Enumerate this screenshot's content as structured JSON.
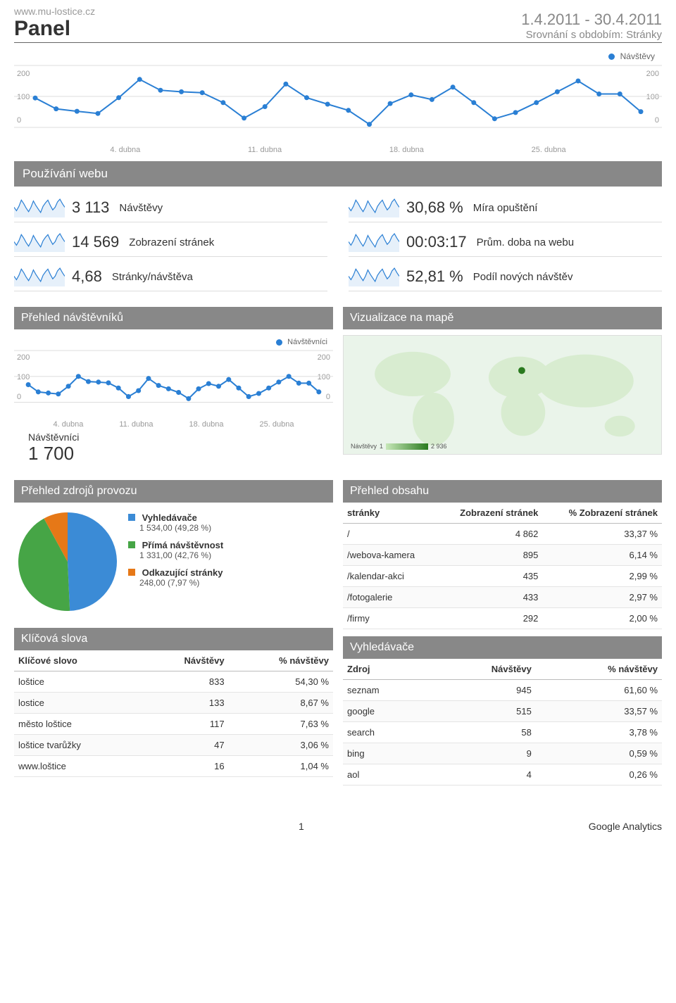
{
  "header": {
    "site": "www.mu-lostice.cz",
    "title": "Panel",
    "date_range": "1.4.2011 - 30.4.2011",
    "subtitle": "Srovnání s obdobím: Stránky"
  },
  "colors": {
    "primary": "#2a7fd4",
    "primary_fill": "#e6f0fa",
    "grid": "#dddddd",
    "axis_text": "#999999",
    "pie_blue": "#3b8bd6",
    "pie_green": "#46a546",
    "pie_orange": "#e67817",
    "bar_bg": "#888888",
    "map_bg": "#eaf4ea"
  },
  "main_chart": {
    "legend": "Návštěvy",
    "y_ticks": [
      "200",
      "100",
      "0"
    ],
    "x_ticks": [
      "4. dubna",
      "11. dubna",
      "18. dubna",
      "25. dubna"
    ],
    "ymax": 200,
    "values": [
      95,
      60,
      52,
      45,
      96,
      155,
      120,
      115,
      112,
      80,
      30,
      67,
      140,
      96,
      75,
      55,
      10,
      77,
      105,
      90,
      130,
      80,
      28,
      48,
      80,
      115,
      150,
      108,
      108,
      51
    ]
  },
  "usage": {
    "title": "Používání webu",
    "sparkline": [
      50,
      30,
      55,
      90,
      70,
      45,
      25,
      50,
      85,
      60,
      40,
      20,
      55,
      75,
      90,
      60,
      35,
      50,
      80,
      95,
      70,
      50
    ],
    "items": [
      {
        "value": "3 113",
        "label": "Návštěvy"
      },
      {
        "value": "30,68 %",
        "label": "Míra opuštění"
      },
      {
        "value": "14 569",
        "label": "Zobrazení stránek"
      },
      {
        "value": "00:03:17",
        "label": "Prům. doba na webu"
      },
      {
        "value": "4,68",
        "label": "Stránky/návštěva"
      },
      {
        "value": "52,81 %",
        "label": "Podíl nových návštěv"
      }
    ]
  },
  "visitors_panel": {
    "title": "Přehled návštěvníků",
    "legend": "Návštěvníci",
    "y_ticks": [
      "200",
      "100",
      "0"
    ],
    "x_ticks": [
      "4. dubna",
      "11. dubna",
      "18. dubna",
      "25. dubna"
    ],
    "ymax": 200,
    "values": [
      68,
      40,
      36,
      32,
      62,
      100,
      80,
      78,
      75,
      55,
      22,
      45,
      92,
      65,
      52,
      38,
      14,
      52,
      72,
      62,
      88,
      55,
      22,
      34,
      55,
      78,
      100,
      74,
      74,
      40
    ],
    "summary_label": "Návštěvníci",
    "summary_value": "1 700"
  },
  "map_panel": {
    "title": "Vizualizace na mapě",
    "scale_label": "Návštěvy",
    "scale_min": "1",
    "scale_max": "2 936"
  },
  "traffic_panel": {
    "title": "Přehled zdrojů provozu",
    "slices": [
      {
        "name": "Vyhledávače",
        "text": "1 534,00 (49,28 %)",
        "percent": 49.28,
        "color": "#3b8bd6"
      },
      {
        "name": "Přímá návštěvnost",
        "text": "1 331,00 (42,76 %)",
        "percent": 42.76,
        "color": "#46a546"
      },
      {
        "name": "Odkazující stránky",
        "text": "248,00 (7,97 %)",
        "percent": 7.97,
        "color": "#e67817"
      }
    ]
  },
  "keywords_panel": {
    "title": "Klíčová slova",
    "cols": [
      "Klíčové slovo",
      "Návštěvy",
      "% návštěvy"
    ],
    "rows": [
      [
        "loštice",
        "833",
        "54,30 %"
      ],
      [
        "lostice",
        "133",
        "8,67 %"
      ],
      [
        "město loštice",
        "117",
        "7,63 %"
      ],
      [
        "loštice tvarůžky",
        "47",
        "3,06 %"
      ],
      [
        "www.loštice",
        "16",
        "1,04 %"
      ]
    ]
  },
  "content_panel": {
    "title": "Přehled obsahu",
    "cols": [
      "stránky",
      "Zobrazení stránek",
      "% Zobrazení stránek"
    ],
    "rows": [
      [
        "/",
        "4 862",
        "33,37 %"
      ],
      [
        "/webova-kamera",
        "895",
        "6,14 %"
      ],
      [
        "/kalendar-akci",
        "435",
        "2,99 %"
      ],
      [
        "/fotogalerie",
        "433",
        "2,97 %"
      ],
      [
        "/firmy",
        "292",
        "2,00 %"
      ]
    ]
  },
  "search_panel": {
    "title": "Vyhledávače",
    "cols": [
      "Zdroj",
      "Návštěvy",
      "% návštěvy"
    ],
    "rows": [
      [
        "seznam",
        "945",
        "61,60 %"
      ],
      [
        "google",
        "515",
        "33,57 %"
      ],
      [
        "search",
        "58",
        "3,78 %"
      ],
      [
        "bing",
        "9",
        "0,59 %"
      ],
      [
        "aol",
        "4",
        "0,26 %"
      ]
    ]
  },
  "footer": {
    "page": "1",
    "brand": "Google Analytics"
  }
}
